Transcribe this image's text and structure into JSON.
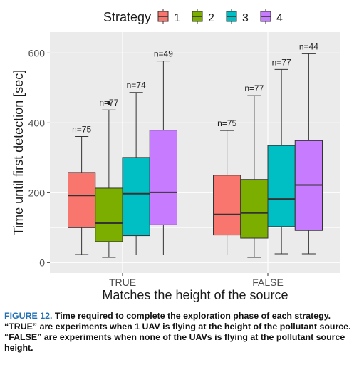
{
  "chart_data": {
    "type": "boxplot",
    "title": "",
    "xlabel": "Matches the height of the source",
    "ylabel": "Time until first detection [sec]",
    "ylim": [
      -30,
      660
    ],
    "yticks": [
      0,
      200,
      400,
      600
    ],
    "grid": true,
    "legend": {
      "title": "Strategy",
      "position": "top"
    },
    "categories": [
      "TRUE",
      "FALSE"
    ],
    "series": [
      {
        "name": "1",
        "color": "#F8766D",
        "values": [
          {
            "category": "TRUE",
            "min": 23,
            "q1": 100,
            "median": 192,
            "q3": 258,
            "max": 361,
            "n": "n=75",
            "outliers": []
          },
          {
            "category": "FALSE",
            "min": 22,
            "q1": 79,
            "median": 138,
            "q3": 250,
            "max": 378,
            "n": "n=75",
            "outliers": []
          }
        ]
      },
      {
        "name": "2",
        "color": "#7CAE00",
        "values": [
          {
            "category": "TRUE",
            "min": 15,
            "q1": 60,
            "median": 113,
            "q3": 213,
            "max": 437,
            "n": "n=77",
            "outliers": [
              457
            ]
          },
          {
            "category": "FALSE",
            "min": 15,
            "q1": 70,
            "median": 142,
            "q3": 238,
            "max": 478,
            "n": "n=77",
            "outliers": []
          }
        ]
      },
      {
        "name": "3",
        "color": "#00BFC4",
        "values": [
          {
            "category": "TRUE",
            "min": 22,
            "q1": 77,
            "median": 197,
            "q3": 301,
            "max": 487,
            "n": "n=74",
            "outliers": []
          },
          {
            "category": "FALSE",
            "min": 25,
            "q1": 103,
            "median": 182,
            "q3": 335,
            "max": 553,
            "n": "n=77",
            "outliers": []
          }
        ]
      },
      {
        "name": "4",
        "color": "#C77CFF",
        "values": [
          {
            "category": "TRUE",
            "min": 22,
            "q1": 108,
            "median": 201,
            "q3": 379,
            "max": 577,
            "n": "n=49",
            "outliers": []
          },
          {
            "category": "FALSE",
            "min": 25,
            "q1": 92,
            "median": 222,
            "q3": 349,
            "max": 598,
            "n": "n=44",
            "outliers": []
          }
        ]
      }
    ]
  },
  "caption": {
    "label": "FIGURE 12.",
    "text": " Time required to complete the exploration phase of each strategy. “TRUE” are experiments when 1 UAV is flying at the height of the pollutant source. “FALSE” are experiments when none of the UAVs is flying at the pollutant source height."
  }
}
